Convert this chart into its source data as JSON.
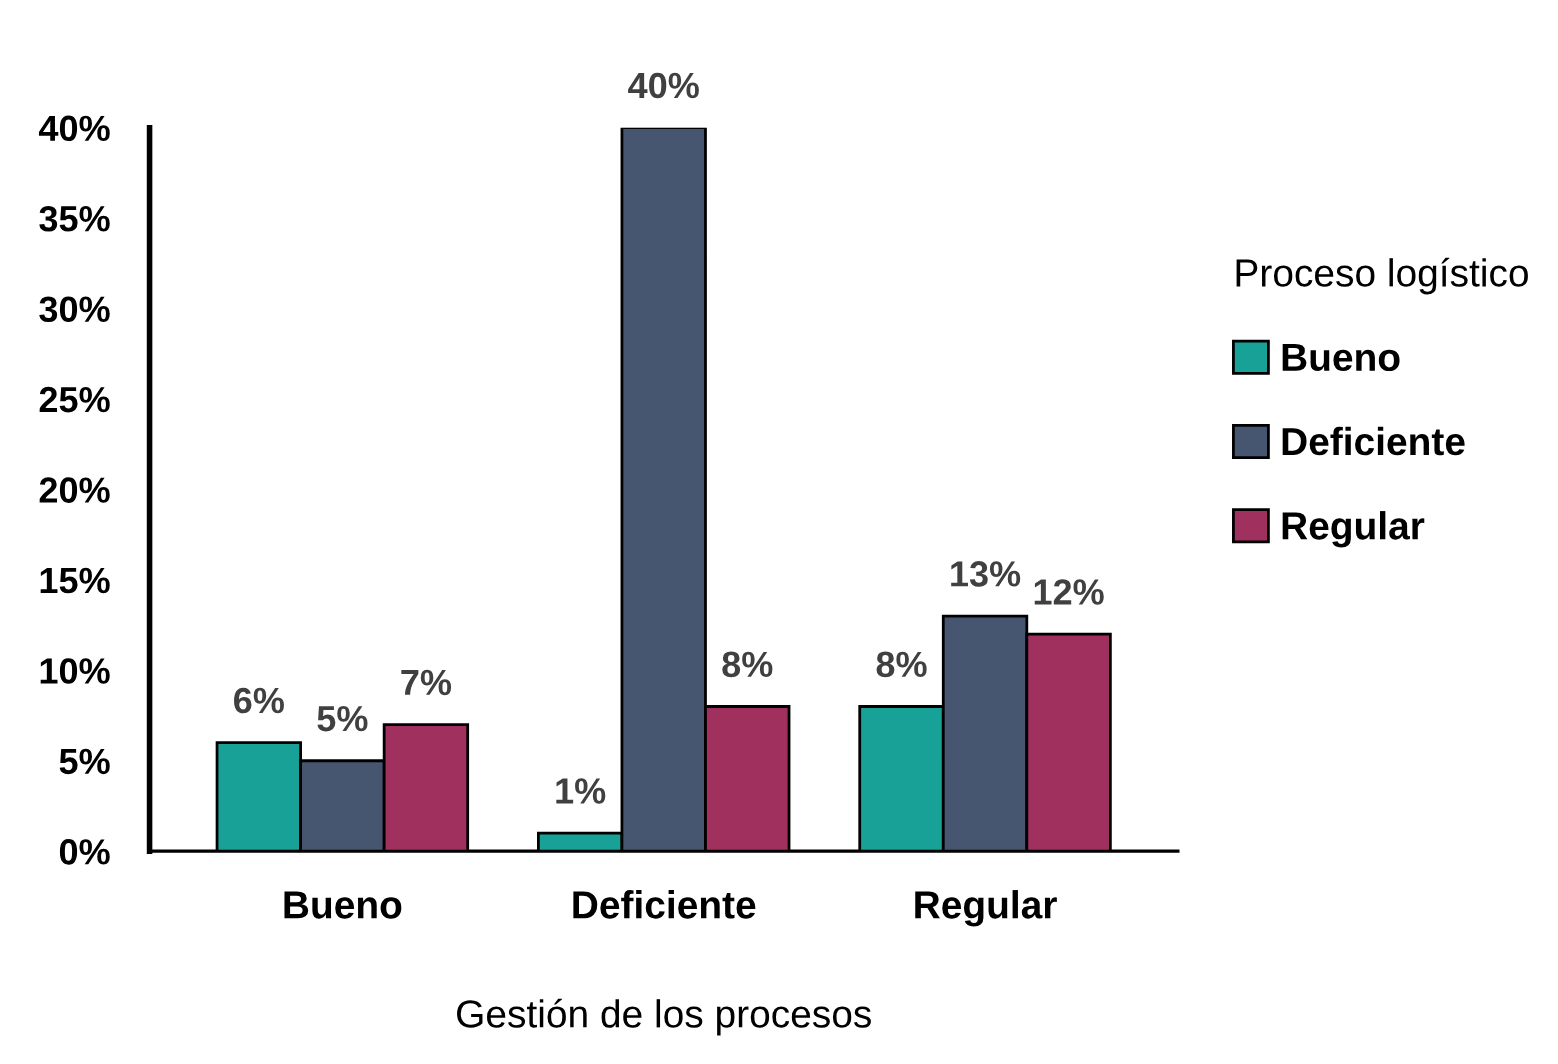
{
  "chart_data": {
    "type": "bar",
    "xlabel": "Gestión de los procesos",
    "legend_title": "Proceso logístico",
    "legend": "right",
    "categories": [
      "Bueno",
      "Deficiente",
      "Regular"
    ],
    "series": [
      {
        "name": "Bueno",
        "color": "#17a197",
        "values": [
          6,
          1,
          8
        ],
        "value_labels": [
          "6%",
          "1%",
          "8%"
        ]
      },
      {
        "name": "Deficiente",
        "color": "#465570",
        "values": [
          5,
          40,
          13
        ],
        "value_labels": [
          "5%",
          "40%",
          "13%"
        ]
      },
      {
        "name": "Regular",
        "color": "#a0305e",
        "values": [
          7,
          8,
          12
        ],
        "value_labels": [
          "7%",
          "8%",
          "12%"
        ]
      }
    ],
    "ylim": [
      0,
      40
    ],
    "yticks": [
      {
        "value": 0,
        "label": "0%"
      },
      {
        "value": 5,
        "label": "5%"
      },
      {
        "value": 10,
        "label": "10%"
      },
      {
        "value": 15,
        "label": "15%"
      },
      {
        "value": 20,
        "label": "20%"
      },
      {
        "value": 25,
        "label": "25%"
      },
      {
        "value": 30,
        "label": "30%"
      },
      {
        "value": 35,
        "label": "35%"
      },
      {
        "value": 40,
        "label": "40%"
      }
    ]
  }
}
